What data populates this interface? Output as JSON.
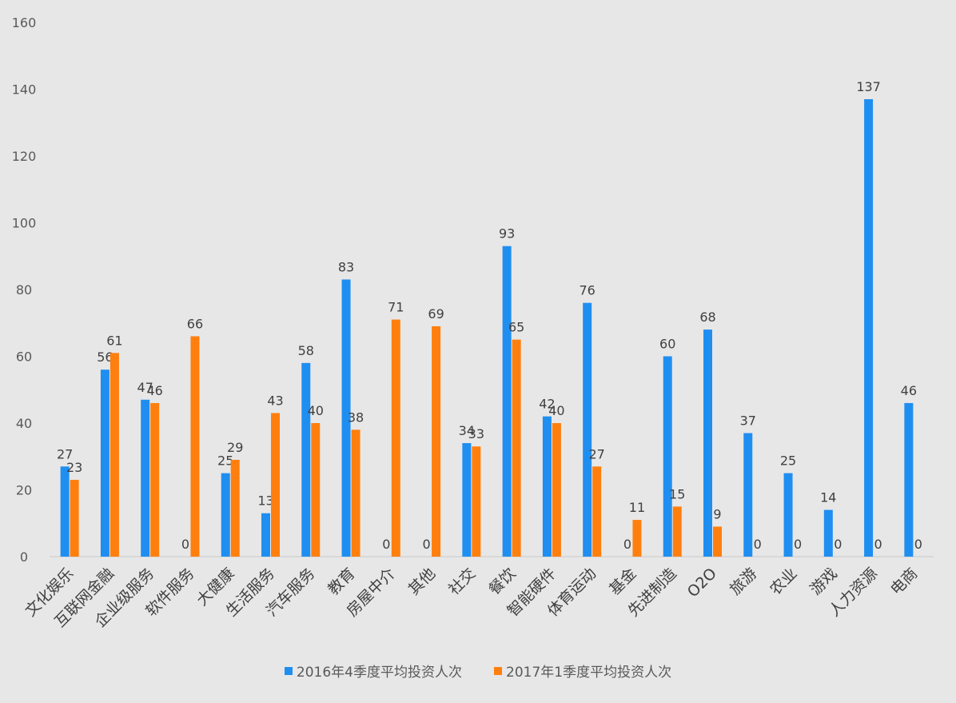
{
  "chart_data": {
    "type": "bar",
    "categories": [
      "文化娱乐",
      "互联网金融",
      "企业级服务",
      "软件服务",
      "大健康",
      "生活服务",
      "汽车服务",
      "教育",
      "房屋中介",
      "其他",
      "社交",
      "餐饮",
      "智能硬件",
      "体育运动",
      "基金",
      "先进制造",
      "O2O",
      "旅游",
      "农业",
      "游戏",
      "人力资源",
      "电商"
    ],
    "series": [
      {
        "name": "2016年4季度平均投资人次",
        "color": "#1f8ef1",
        "values": [
          27,
          56,
          47,
          0,
          25,
          13,
          58,
          83,
          0,
          0,
          34,
          93,
          42,
          76,
          0,
          60,
          68,
          37,
          25,
          14,
          137,
          46
        ]
      },
      {
        "name": "2017年1季度平均投资人次",
        "color": "#ff7f0e",
        "values": [
          23,
          61,
          46,
          66,
          29,
          43,
          40,
          38,
          71,
          69,
          33,
          65,
          40,
          27,
          11,
          15,
          9,
          0,
          0,
          0,
          0,
          0
        ]
      }
    ],
    "ylim": [
      0,
      160
    ],
    "yticks": [
      "0",
      "20",
      "40",
      "60",
      "80",
      "100",
      "120",
      "140",
      "160"
    ],
    "grid": false,
    "legend_position": "bottom",
    "title": "",
    "xlabel": "",
    "ylabel": ""
  }
}
